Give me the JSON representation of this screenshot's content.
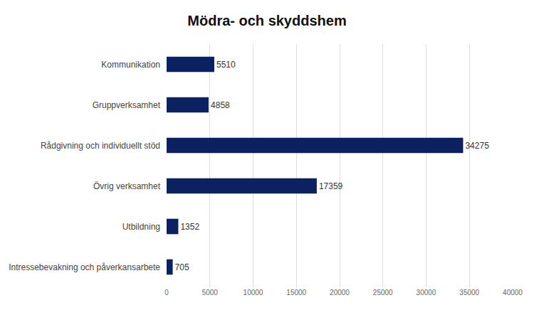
{
  "chart_data": {
    "type": "bar",
    "orientation": "horizontal",
    "title": "Mödra- och skyddshem",
    "categories": [
      "Kommunikation",
      "Gruppverksamhet",
      "Rådgivning och individuellt stöd",
      "Övrig verksamhet",
      "Utbildning",
      "Intressebevakning och påverkansarbete"
    ],
    "values": [
      5510,
      4858,
      34275,
      17359,
      1352,
      705
    ],
    "color": "#0b2160",
    "xlim": [
      0,
      40000
    ],
    "xticks": [
      0,
      5000,
      10000,
      15000,
      20000,
      25000,
      30000,
      35000,
      40000
    ],
    "grid": true,
    "data_labels": true
  }
}
